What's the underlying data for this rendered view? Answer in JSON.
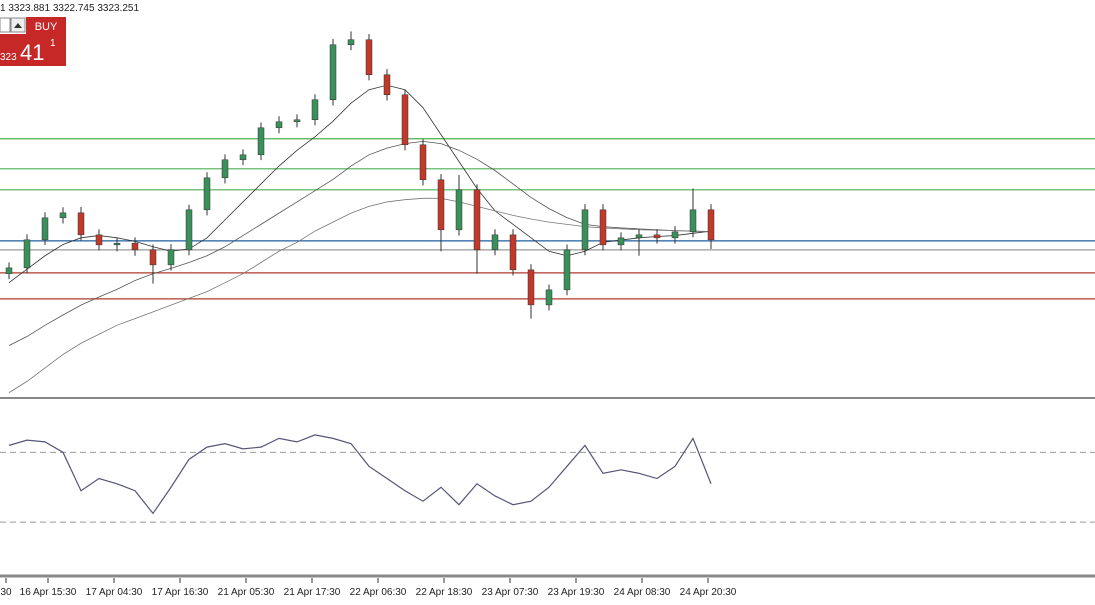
{
  "info_bar": "1 3323.881 3322.745 3323.251",
  "trade_panel": {
    "button": "BUY",
    "price_prefix": "323",
    "price_big": "41",
    "price_super": "1"
  },
  "chart_data": [
    {
      "type": "candlestick",
      "x_labels": [
        "30",
        "16 Apr 15:30",
        "17 Apr 04:30",
        "17 Apr 16:30",
        "21 Apr 05:30",
        "21 Apr 17:30",
        "22 Apr 06:30",
        "22 Apr 18:30",
        "23 Apr 07:30",
        "23 Apr 19:30",
        "24 Apr 08:30",
        "24 Apr 20:30"
      ],
      "ylim": [
        2973,
        3860
      ],
      "up_color": "#3a8f5a",
      "down_color": "#c0392b",
      "open": [
        3250.0,
        3263.0,
        3325.5,
        3374.5,
        3385.7,
        3336.6,
        3314.3,
        3318.0,
        3303.2,
        3269.7,
        3303.2,
        3392.4,
        3463.7,
        3503.9,
        3515.0,
        3575.2,
        3588.6,
        3593.1,
        3637.7,
        3760.3,
        3771.5,
        3693.4,
        3648.8,
        3537.3,
        3459.3,
        3347.8,
        3437.0,
        3303.2,
        3336.6,
        3258.6,
        3180.5,
        3214.0,
        3303.2,
        3392.4,
        3314.3,
        3329.9,
        3336.6,
        3329.9,
        3343.3,
        3392.4
      ],
      "high": [
        3275,
        3338,
        3387,
        3398,
        3399,
        3349,
        3330,
        3331,
        3315,
        3316,
        3404,
        3476,
        3516,
        3527,
        3587,
        3601,
        3605,
        3650,
        3773,
        3790,
        3784,
        3706,
        3660,
        3550,
        3472,
        3470,
        3449,
        3349,
        3349,
        3271,
        3226,
        3315,
        3405,
        3405,
        3342,
        3349,
        3349,
        3356,
        3440,
        3405
      ],
      "low": [
        3238,
        3251,
        3314,
        3362,
        3324,
        3302,
        3300,
        3290,
        3228,
        3257,
        3291,
        3380,
        3451,
        3492,
        3503,
        3563,
        3576,
        3581,
        3625,
        3748,
        3681,
        3636,
        3525,
        3447,
        3300,
        3335,
        3250,
        3291,
        3246,
        3150,
        3168,
        3202,
        3291,
        3302,
        3302,
        3290,
        3317,
        3317,
        3331,
        3305
      ],
      "close": [
        3263.0,
        3325.5,
        3374.5,
        3385.7,
        3336.6,
        3314.3,
        3318.0,
        3303.2,
        3269.7,
        3303.2,
        3392.4,
        3463.7,
        3503.9,
        3515.0,
        3575.2,
        3588.6,
        3593.1,
        3637.7,
        3760.3,
        3771.5,
        3693.4,
        3648.8,
        3537.3,
        3459.3,
        3347.8,
        3437.0,
        3303.2,
        3336.6,
        3258.6,
        3180.5,
        3214.0,
        3303.2,
        3392.4,
        3314.3,
        3329.9,
        3336.6,
        3329.9,
        3343.3,
        3392.4,
        3325.5
      ],
      "series": [
        {
          "color": "#333333",
          "values": [
            3230,
            3260,
            3290,
            3315,
            3330,
            3335,
            3330,
            3322,
            3310,
            3300,
            3305,
            3330,
            3370,
            3410,
            3450,
            3490,
            3525,
            3555,
            3590,
            3630,
            3660,
            3670,
            3660,
            3620,
            3560,
            3500,
            3440,
            3390,
            3360,
            3330,
            3300,
            3290,
            3300,
            3320,
            3325,
            3330,
            3333,
            3335,
            3340,
            3345
          ]
        },
        {
          "color": "#555555",
          "values": [
            3090,
            3110,
            3135,
            3158,
            3180,
            3198,
            3215,
            3235,
            3250,
            3262,
            3275,
            3290,
            3310,
            3335,
            3360,
            3385,
            3410,
            3435,
            3460,
            3490,
            3515,
            3530,
            3540,
            3545,
            3540,
            3525,
            3505,
            3480,
            3450,
            3420,
            3395,
            3375,
            3360,
            3355,
            3352,
            3350,
            3348,
            3346,
            3345,
            3343
          ]
        },
        {
          "color": "#777777",
          "values": [
            2985,
            3010,
            3040,
            3070,
            3095,
            3115,
            3135,
            3150,
            3165,
            3180,
            3195,
            3210,
            3230,
            3250,
            3275,
            3300,
            3320,
            3345,
            3365,
            3385,
            3400,
            3410,
            3415,
            3418,
            3418,
            3410,
            3400,
            3390,
            3380,
            3372,
            3365,
            3360,
            3355,
            3352,
            3350,
            3348,
            3347,
            3346,
            3345,
            3344
          ]
        }
      ],
      "levels": [
        {
          "value": 3550.7,
          "color": "#4caf50"
        },
        {
          "value": 3483.8,
          "color": "#4caf50"
        },
        {
          "value": 3437.0,
          "color": "#4caf50"
        },
        {
          "value": 3323.25,
          "color": "#1f5fa0"
        },
        {
          "value": 3303.2,
          "color": "#999999"
        },
        {
          "value": 3251.9,
          "color": "#b03a2e"
        },
        {
          "value": 3193.9,
          "color": "#b03a2e"
        }
      ]
    },
    {
      "type": "line",
      "ylim": [
        0,
        100
      ],
      "color": "#555577",
      "levels": [
        30,
        70
      ],
      "values": [
        74,
        77,
        76,
        70,
        48,
        55,
        52,
        48,
        35,
        50,
        66,
        73,
        75,
        72,
        73,
        78,
        76,
        80,
        78,
        75,
        62,
        55,
        48,
        42,
        50,
        40,
        52,
        45,
        40,
        42,
        50,
        62,
        74,
        58,
        60,
        58,
        55,
        62,
        78,
        52
      ]
    }
  ]
}
